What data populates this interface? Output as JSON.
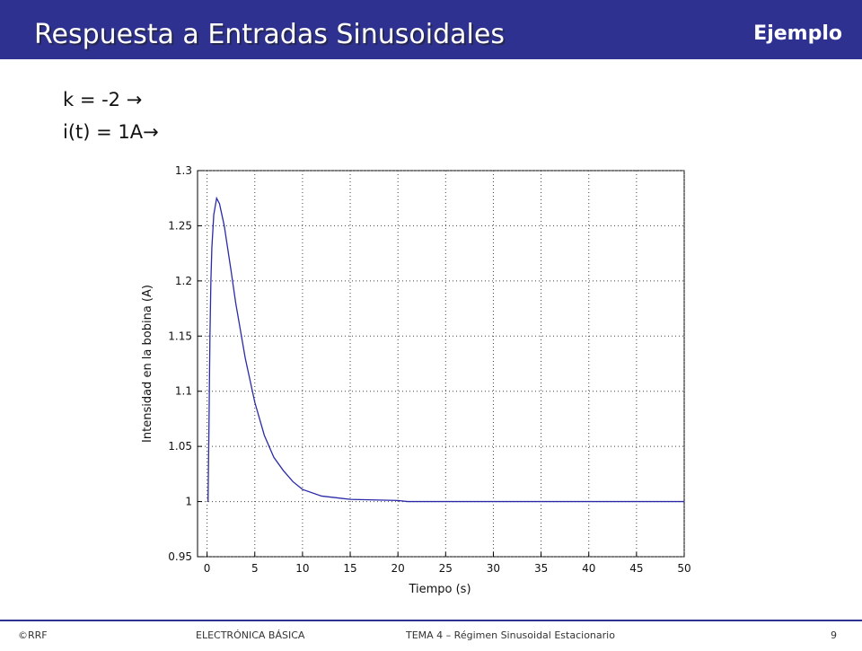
{
  "header": {
    "title": "Respuesta a Entradas Sinusoidales",
    "tag": "Ejemplo"
  },
  "notes": [
    "k = -2 →",
    "i(t) = 1A→"
  ],
  "footer": {
    "copyright": "©RRF",
    "course": "ELECTRÓNICA BÁSICA",
    "topic": "TEMA 4 – Régimen Sinusoidal Estacionario",
    "page": "9"
  },
  "chart_data": {
    "type": "line",
    "xlabel": "Tiempo (s)",
    "ylabel": "Intensidad en la bobina (A)",
    "x": [
      0.1,
      0.2,
      0.3,
      0.4,
      0.5,
      0.7,
      1.0,
      1.3,
      1.8,
      2.5,
      3,
      4,
      5,
      6,
      7,
      8,
      9,
      10,
      12,
      15,
      20,
      21,
      50
    ],
    "values": [
      1.0,
      1.07,
      1.15,
      1.2,
      1.23,
      1.26,
      1.275,
      1.27,
      1.25,
      1.21,
      1.18,
      1.13,
      1.09,
      1.06,
      1.04,
      1.028,
      1.018,
      1.011,
      1.005,
      1.002,
      1.001,
      1.0,
      1.0
    ],
    "color": "#2a2aa8",
    "xlim": [
      -1,
      50
    ],
    "ylim": [
      0.95,
      1.3
    ],
    "xticks": [
      0,
      5,
      10,
      15,
      20,
      25,
      30,
      35,
      40,
      45,
      50
    ],
    "yticks": [
      0.95,
      1,
      1.05,
      1.1,
      1.15,
      1.2,
      1.25,
      1.3
    ],
    "grid": true
  }
}
